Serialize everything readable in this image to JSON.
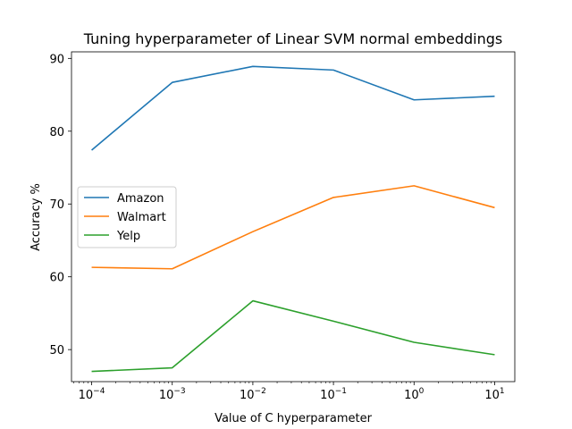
{
  "chart_data": {
    "type": "line",
    "title": "Tuning hyperparameter of Linear SVM normal embeddings",
    "xlabel": "Value of C hyperparameter",
    "ylabel": "Accuracy %",
    "x_scale": "log",
    "x": [
      0.0001,
      0.001,
      0.01,
      0.1,
      1,
      10
    ],
    "x_tick_labels": [
      {
        "base": "10",
        "exp": "−4"
      },
      {
        "base": "10",
        "exp": "−3"
      },
      {
        "base": "10",
        "exp": "−2"
      },
      {
        "base": "10",
        "exp": "−1"
      },
      {
        "base": "10",
        "exp": "0"
      },
      {
        "base": "10",
        "exp": "1"
      }
    ],
    "y_ticks": [
      "50",
      "60",
      "70",
      "80",
      "90"
    ],
    "ylim": [
      45.6,
      90.9
    ],
    "grid": false,
    "legend": "center-left",
    "series": [
      {
        "name": "Amazon",
        "color": "#1f77b4",
        "values": [
          77.4,
          86.7,
          88.9,
          88.4,
          84.3,
          84.8
        ]
      },
      {
        "name": "Walmart",
        "color": "#ff7f0e",
        "values": [
          61.3,
          61.1,
          66.2,
          70.9,
          72.5,
          69.5
        ]
      },
      {
        "name": "Yelp",
        "color": "#2ca02c",
        "values": [
          47.0,
          47.5,
          56.7,
          53.9,
          51.0,
          49.3
        ]
      }
    ]
  }
}
